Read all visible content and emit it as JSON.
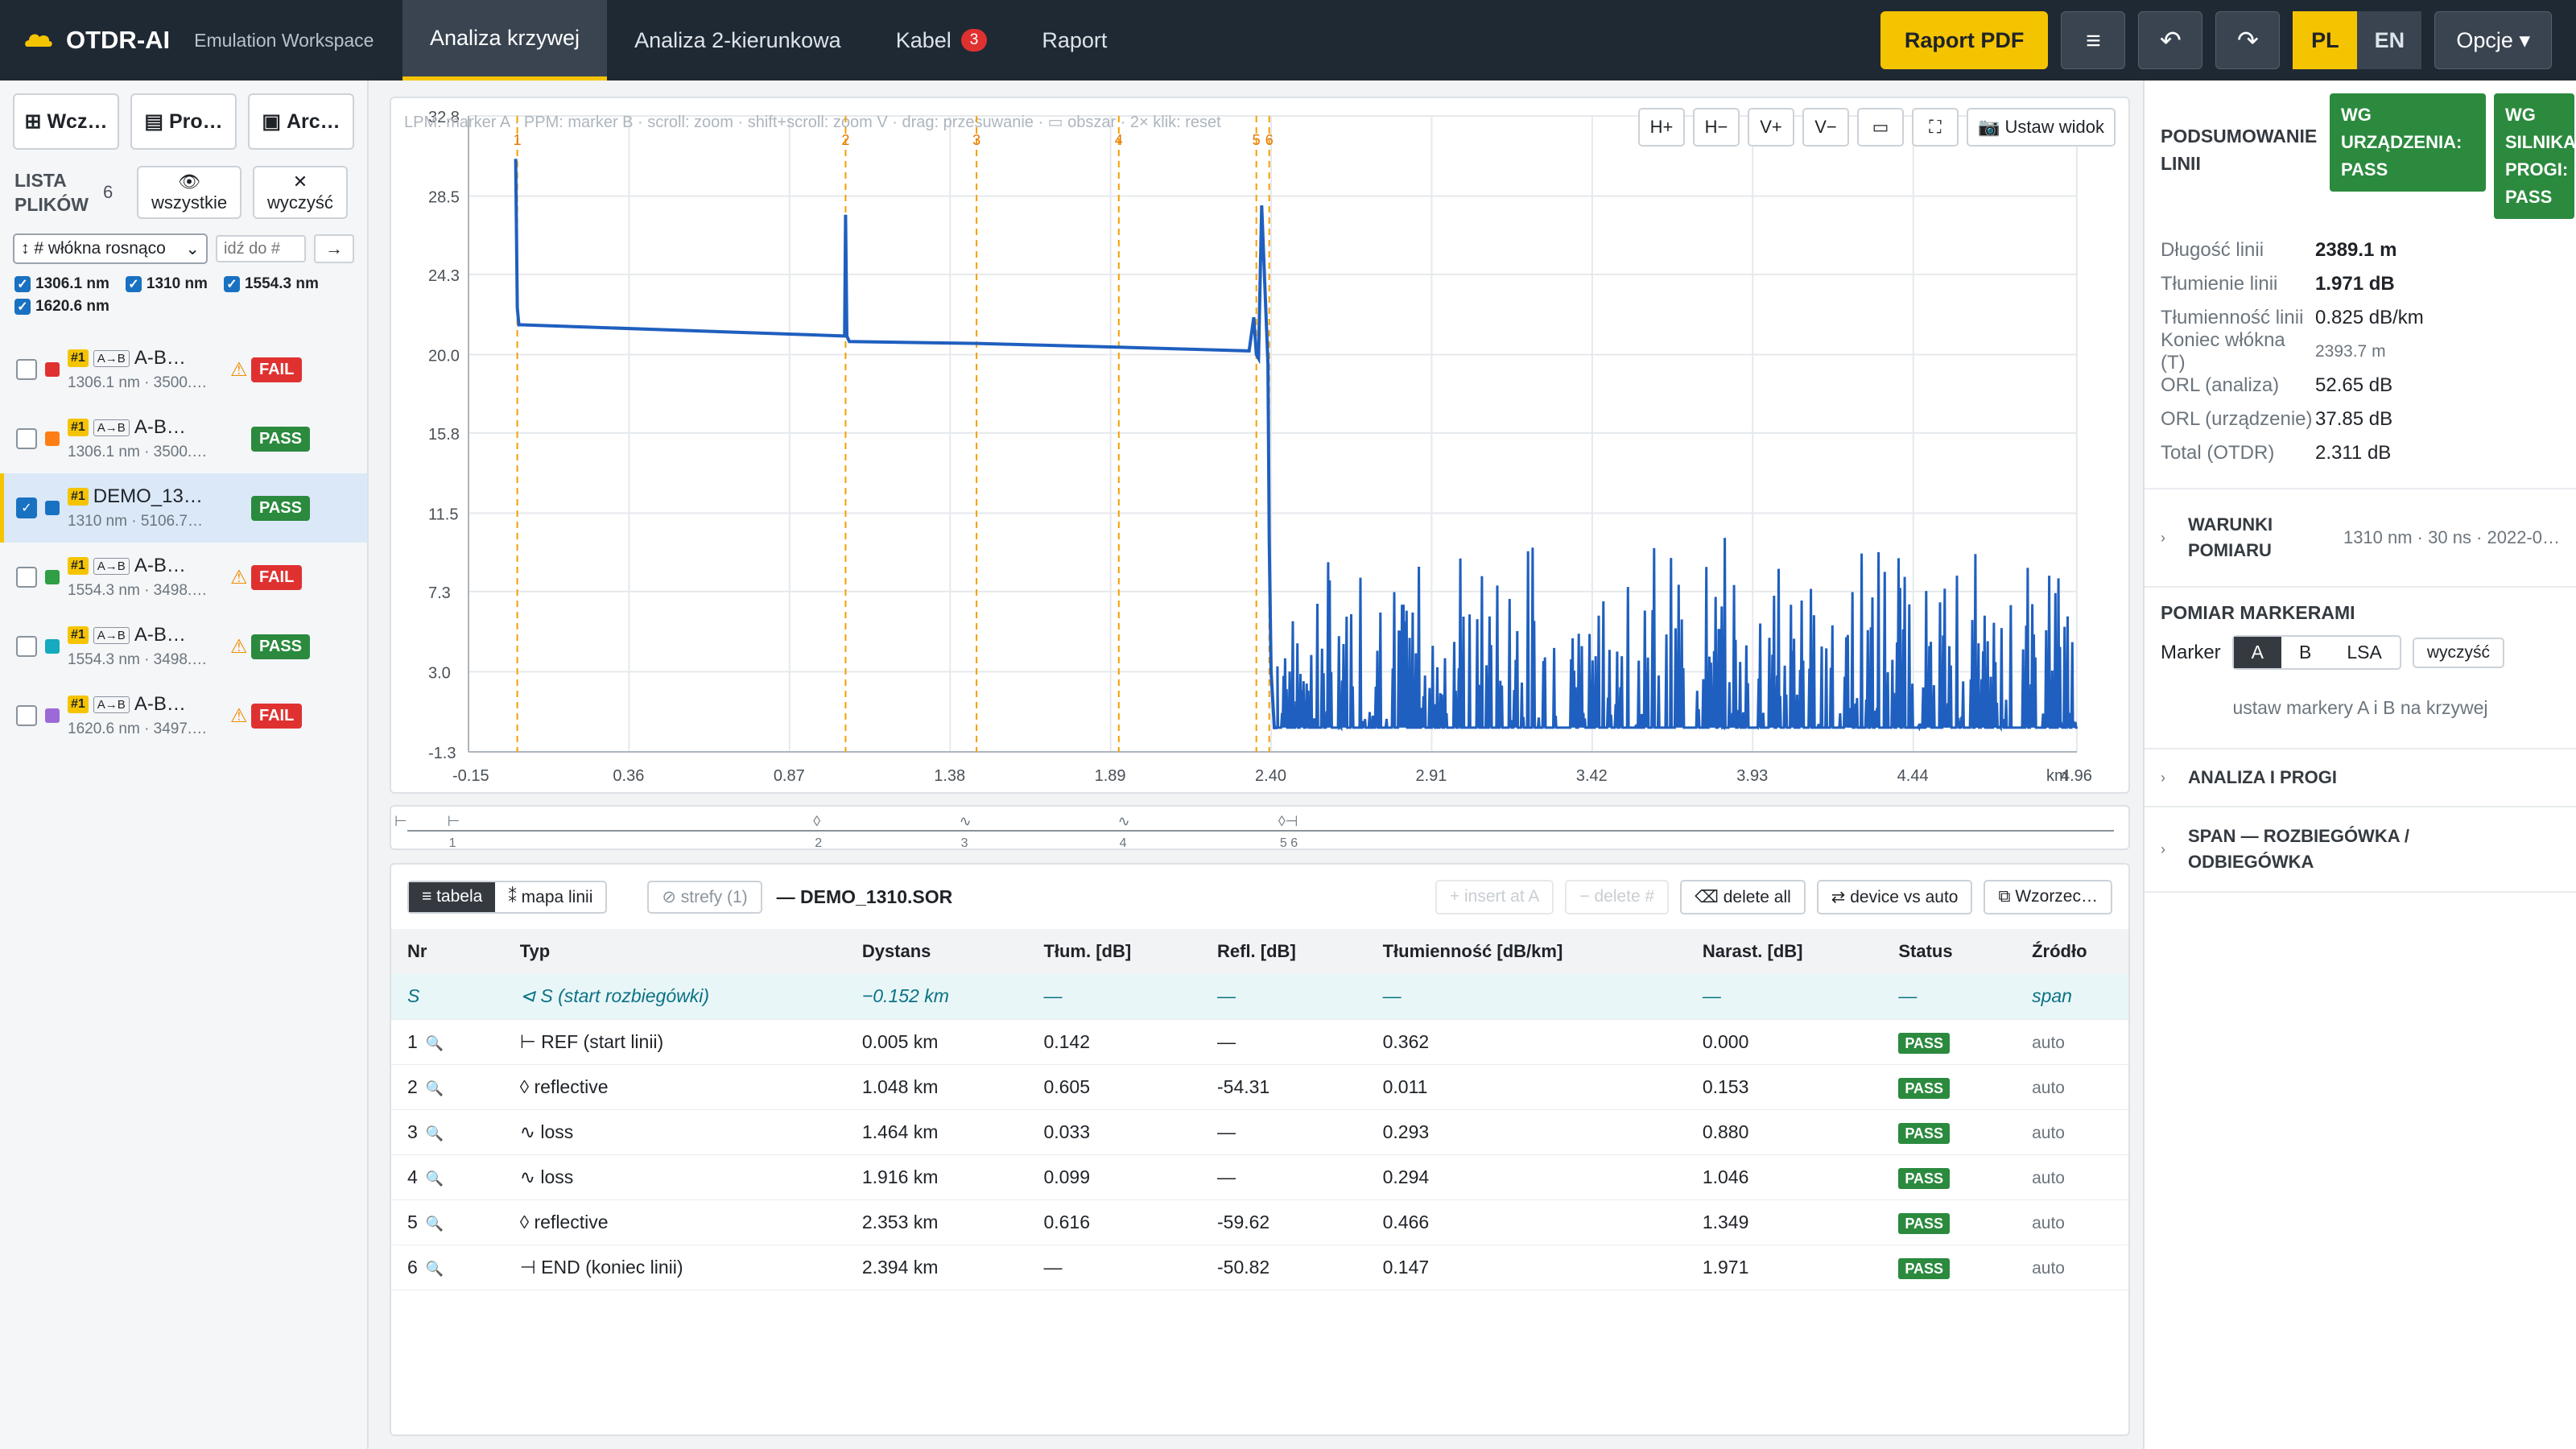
{
  "app": {
    "name": "OTDR-AI",
    "subtitle": "Emulation Workspace",
    "tabs": [
      {
        "label": "Analiza krzywej"
      },
      {
        "label": "Analiza 2-kierunkowa"
      },
      {
        "label": "Kabel",
        "badge": "3"
      },
      {
        "label": "Raport"
      }
    ],
    "pdf_button": "Raport PDF",
    "lang_pl": "PL",
    "lang_en": "EN",
    "options": "Opcje ▾"
  },
  "sidebar": {
    "btn_open": "Wcz…",
    "btn_pro": "Pro…",
    "btn_arc": "Arc…",
    "list_title": "LISTA PLIKÓW",
    "count": "6",
    "show_all": "wszystkie",
    "clear": "wyczyść",
    "sort_select": "↕ # włókna rosnąco",
    "goto_placeholder": "idź do #",
    "goto_btn": "→",
    "wavelengths": [
      "1306.1 nm",
      "1310 nm",
      "1554.3 nm",
      "1620.6 nm"
    ],
    "files": [
      {
        "tag": "#1",
        "dir": "A→B",
        "name": "A-B…",
        "sub": "1306.1 nm · 3500.…",
        "color": "#e03131",
        "status": "FAIL",
        "warn": true,
        "checked": false
      },
      {
        "tag": "#1",
        "dir": "A→B",
        "name": "A-B…",
        "sub": "1306.1 nm · 3500.…",
        "color": "#fd7e14",
        "status": "PASS",
        "warn": false,
        "checked": false
      },
      {
        "tag": "#1",
        "dir": "",
        "name": "DEMO_13…",
        "sub": "1310 nm · 5106.7…",
        "color": "#1971c2",
        "status": "PASS",
        "warn": false,
        "checked": true
      },
      {
        "tag": "#1",
        "dir": "A→B",
        "name": "A-B…",
        "sub": "1554.3 nm · 3498.…",
        "color": "#2f9e44",
        "status": "FAIL",
        "warn": true,
        "checked": false
      },
      {
        "tag": "#1",
        "dir": "A→B",
        "name": "A-B…",
        "sub": "1554.3 nm · 3498.…",
        "color": "#15aabf",
        "status": "PASS",
        "warn": true,
        "checked": false
      },
      {
        "tag": "#1",
        "dir": "A→B",
        "name": "A-B…",
        "sub": "1620.6 nm · 3497.…",
        "color": "#9c6ad6",
        "status": "FAIL",
        "warn": true,
        "checked": false
      }
    ]
  },
  "chart": {
    "hint": "LPM: marker A · PPM: marker B · scroll: zoom · shift+scroll: zoom V · drag: przesuwanie · ▭ obszar · 2× klik: reset",
    "tools": [
      "H+",
      "H−",
      "V+",
      "V−",
      "▭",
      "⛶",
      "Ustaw widok"
    ],
    "unit": "km"
  },
  "chart_data": {
    "type": "line",
    "xlabel": "km",
    "ylabel": "",
    "xlim": [
      -0.15,
      4.96
    ],
    "ylim": [
      -1.3,
      32.8
    ],
    "x_ticks": [
      -0.15,
      0.36,
      0.87,
      1.38,
      1.89,
      2.4,
      2.91,
      3.42,
      3.93,
      4.44,
      4.96
    ],
    "x_tick_labels": [
      "-0.15",
      "0.36",
      "0.87",
      "1.38",
      "1.89",
      "2.40",
      "2.91",
      "3.42",
      "3.93",
      "4.44",
      "4.96"
    ],
    "y_ticks": [
      -1.3,
      3.0,
      7.3,
      11.5,
      15.8,
      20.0,
      24.3,
      28.5,
      32.8
    ],
    "y_tick_labels": [
      "-1.3",
      "3.0",
      "7.3",
      "11.5",
      "15.8",
      "20.0",
      "24.3",
      "28.5",
      "32.8"
    ],
    "grid": true,
    "series": [
      {
        "color": "#1f5fbf",
        "x": [
          0.0,
          0.005,
          0.01,
          0.02,
          1.045,
          1.048,
          1.052,
          1.06,
          1.464,
          1.916,
          2.33,
          2.345,
          2.353,
          2.36,
          2.37,
          2.39,
          2.394,
          2.4,
          2.41,
          2.42
        ],
        "y": [
          30.5,
          22.5,
          21.6,
          21.6,
          21.0,
          27.5,
          21.0,
          20.7,
          20.6,
          20.4,
          20.2,
          22.0,
          20.0,
          19.8,
          28.0,
          19.5,
          10.0,
          3.0,
          0.0,
          0.0
        ]
      }
    ],
    "noise_floor": {
      "x_start": 2.42,
      "x_end": 4.96,
      "y_min": 0.0,
      "y_max": 10.5
    },
    "markers": [
      {
        "label": "1",
        "x": 0.005
      },
      {
        "label": "2",
        "x": 1.048
      },
      {
        "label": "3",
        "x": 1.464
      },
      {
        "label": "4",
        "x": 1.916
      },
      {
        "label": "5",
        "x": 2.353
      },
      {
        "label": "6",
        "x": 2.394
      }
    ]
  },
  "minimap": {
    "events": [
      {
        "label": "1",
        "glyph": "⊢",
        "x": 0.005
      },
      {
        "label": "2",
        "glyph": "◊",
        "x": 1.048
      },
      {
        "label": "3",
        "glyph": "∿",
        "x": 1.464
      },
      {
        "label": "4",
        "glyph": "∿",
        "x": 1.916
      },
      {
        "label": "5 6",
        "glyph": "◊⊣",
        "x": 2.373
      }
    ]
  },
  "events_table": {
    "view_table": "≡ tabela",
    "view_map": "⁑ mapa linii",
    "zones": "⊘ strefy (1)",
    "file": "— DEMO_1310.SOR",
    "insert": "+ insert at A",
    "delete": "− delete #",
    "delete_all": "⌫ delete all",
    "device_vs_auto": "⇄ device vs auto",
    "patterns": "⧉ Wzorzec…",
    "headers": [
      "Nr",
      "Typ",
      "Dystans",
      "Tłum. [dB]",
      "Refl. [dB]",
      "Tłumienność [dB/km]",
      "Narast. [dB]",
      "Status",
      "Źródło"
    ],
    "start_row": [
      "S",
      "⊲ S (start rozbiegówki)",
      "−0.152 km",
      "—",
      "—",
      "—",
      "—",
      "—",
      "span"
    ],
    "rows": [
      [
        "1",
        "⊢ REF (start linii)",
        "0.005 km",
        "0.142",
        "—",
        "0.362",
        "0.000",
        "PASS",
        "auto"
      ],
      [
        "2",
        "◊ reflective",
        "1.048 km",
        "0.605",
        "-54.31",
        "0.011",
        "0.153",
        "PASS",
        "auto"
      ],
      [
        "3",
        "∿ loss",
        "1.464 km",
        "0.033",
        "—",
        "0.293",
        "0.880",
        "PASS",
        "auto"
      ],
      [
        "4",
        "∿ loss",
        "1.916 km",
        "0.099",
        "—",
        "0.294",
        "1.046",
        "PASS",
        "auto"
      ],
      [
        "5",
        "◊ reflective",
        "2.353 km",
        "0.616",
        "-59.62",
        "0.466",
        "1.349",
        "PASS",
        "auto"
      ],
      [
        "6",
        "⊣ END (koniec linii)",
        "2.394 km",
        "—",
        "-50.82",
        "0.147",
        "1.971",
        "PASS",
        "auto"
      ]
    ]
  },
  "summary": {
    "title": "PODSUMOWANIE LINII",
    "badge_device": "WG URZĄDZENIA: PASS",
    "badge_engine": "WG SILNIKA PROGI: PASS",
    "rows": [
      {
        "k": "Długość linii",
        "v": "2389.1 m",
        "style": "b"
      },
      {
        "k": "Tłumienie linii",
        "v": "1.971 dB",
        "style": "b"
      },
      {
        "k": "Tłumienność linii",
        "v": "0.825 dB/km",
        "style": ""
      },
      {
        "k": "Koniec włókna (T)",
        "v": "2393.7 m",
        "style": "g"
      },
      {
        "k": "ORL (analiza)",
        "v": "52.65 dB",
        "style": ""
      },
      {
        "k": "ORL (urządzenie)",
        "v": "37.85 dB",
        "style": ""
      },
      {
        "k": "Total (OTDR)",
        "v": "2.311 dB",
        "style": ""
      }
    ],
    "conditions_title": "WARUNKI POMIARU",
    "conditions_value": "1310 nm · 30 ns · 2022-0…",
    "markers_title": "POMIAR MARKERAMI",
    "marker_label": "Marker",
    "marker_modes": [
      "A",
      "B",
      "LSA"
    ],
    "marker_clear": "wyczyść",
    "marker_hint": "ustaw markery A i B na krzywej",
    "analysis_title": "ANALIZA I PROGI",
    "span_title": "SPAN — ROZBIEGÓWKA / ODBIEGÓWKA"
  }
}
